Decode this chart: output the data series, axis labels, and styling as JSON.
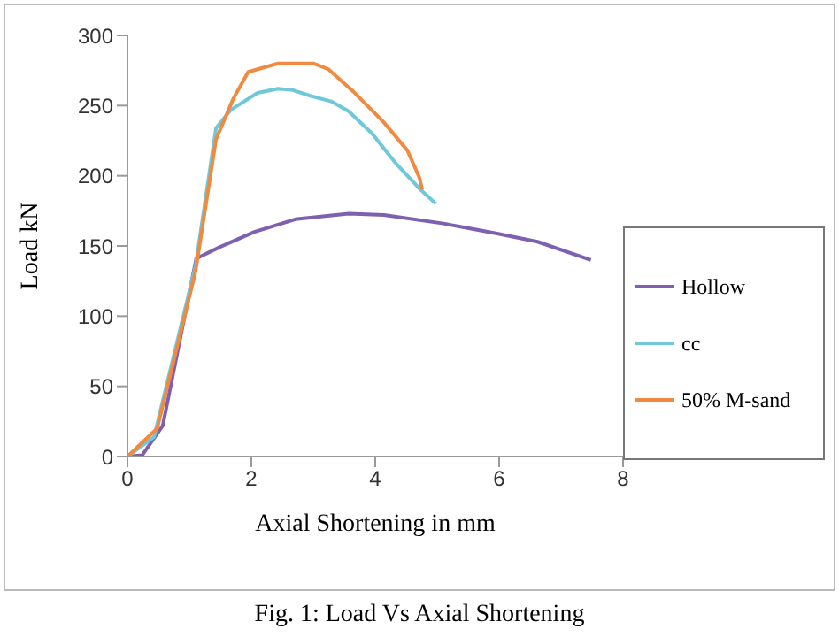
{
  "chart_data": {
    "type": "line",
    "xlabel": "Axial Shortening in mm",
    "ylabel": "Load kN",
    "annotations": [
      "Fig. 1: Load Vs Axial Shortening"
    ],
    "xlim": [
      0,
      8
    ],
    "xticks": [
      0,
      2,
      4,
      6,
      8
    ],
    "ylim": [
      0,
      300
    ],
    "yticks": [
      0,
      50,
      100,
      150,
      200,
      250,
      300
    ],
    "legend": "right",
    "marker": "none",
    "line_style": "solid",
    "grid": false,
    "series": [
      {
        "name": "Hollow",
        "color": "#7f5fb0",
        "x": [
          0,
          0.24,
          0.57,
          1.11,
          1.48,
          2.05,
          2.71,
          3.57,
          4.14,
          5.1,
          5.95,
          6.62,
          7.48
        ],
        "values": [
          0,
          1,
          22,
          141,
          149,
          160,
          169,
          173,
          172,
          166,
          159,
          153,
          140
        ]
      },
      {
        "name": "cc",
        "color": "#6fc8d8",
        "x": [
          0,
          0.43,
          1.1,
          1.43,
          1.67,
          2.1,
          2.43,
          2.67,
          2.95,
          3.29,
          3.57,
          3.95,
          4.33,
          4.71,
          4.98
        ],
        "values": [
          0,
          14,
          136,
          234,
          247,
          259,
          262,
          261,
          257,
          253,
          246,
          230,
          209,
          191,
          180
        ]
      },
      {
        "name": "50% M-sand",
        "color": "#f08a40",
        "x": [
          0,
          0.48,
          1.1,
          1.43,
          1.71,
          1.95,
          2.43,
          3.0,
          3.24,
          3.67,
          4.14,
          4.52,
          4.71,
          4.76
        ],
        "values": [
          0,
          20,
          132,
          226,
          255,
          274,
          280,
          280,
          276,
          259,
          238,
          218,
          199,
          190
        ]
      }
    ]
  }
}
